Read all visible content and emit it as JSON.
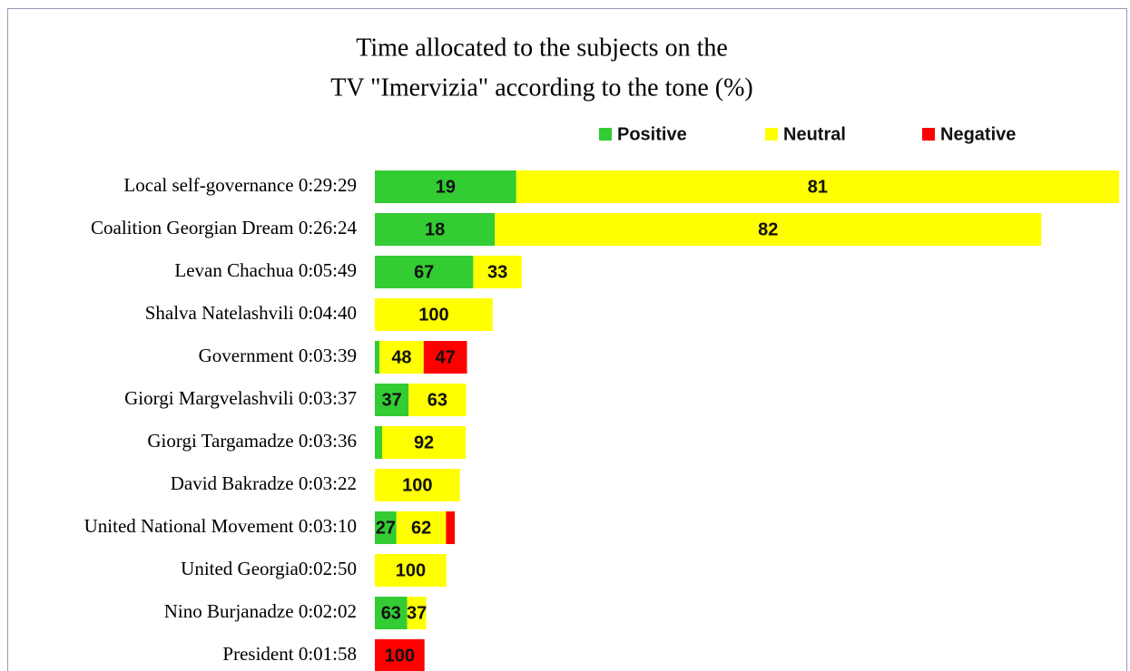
{
  "chart_data": {
    "type": "bar_stacked_horizontal",
    "title": "Time allocated to the subjects on the",
    "subtitle": "TV \"Imervizia\" according to the tone (%)",
    "categories": [
      "Local self-governance 0:29:29",
      "Coalition Georgian Dream  0:26:24",
      "Levan Chachua 0:05:49",
      "Shalva Natelashvili 0:04:40",
      "Government 0:03:39",
      "Giorgi Margvelashvili 0:03:37",
      "Giorgi Targamadze 0:03:36",
      "David Bakradze 0:03:22",
      "United National Movement 0:03:10",
      "United Georgia0:02:50",
      "Nino Burjanadze 0:02:02",
      "President 0:01:58"
    ],
    "series": [
      {
        "name": "Positive",
        "color": "#33cc33",
        "values": [
          19,
          18,
          67,
          null,
          5,
          37,
          8,
          null,
          27,
          null,
          63,
          null
        ]
      },
      {
        "name": "Neutral",
        "color": "#ffff00",
        "values": [
          81,
          82,
          33,
          100,
          48,
          63,
          92,
          100,
          62,
          100,
          37,
          null
        ]
      },
      {
        "name": "Negative",
        "color": "#ff0000",
        "values": [
          null,
          null,
          null,
          null,
          47,
          null,
          null,
          null,
          11,
          null,
          null,
          100
        ]
      }
    ],
    "legend": "top"
  }
}
